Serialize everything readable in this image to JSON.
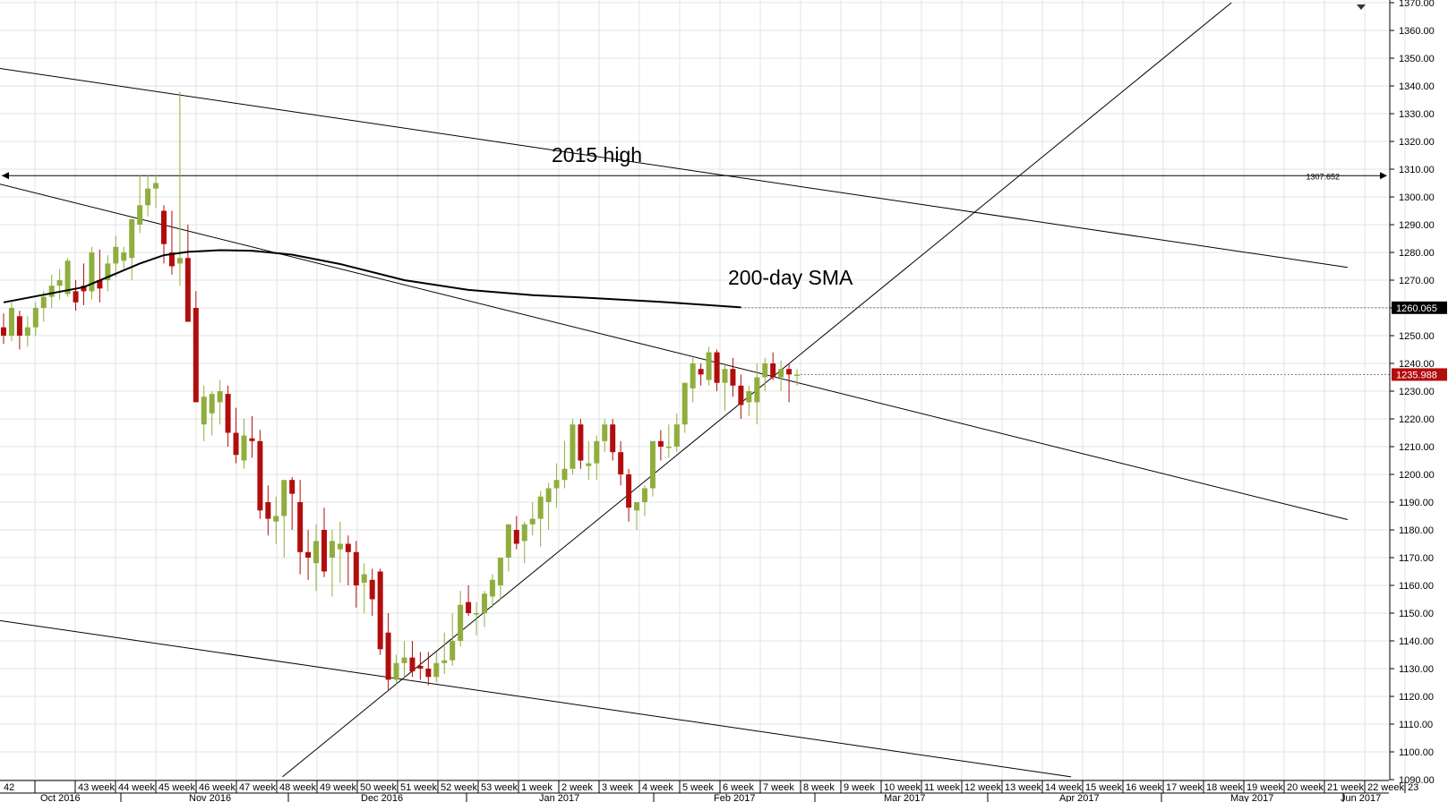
{
  "chart_data": {
    "type": "candlestick",
    "title": "",
    "xlabel": "",
    "ylabel": "",
    "ylim": [
      1090,
      1370
    ],
    "y_ticks": [
      "1370.00",
      "1360.00",
      "1350.00",
      "1340.00",
      "1330.00",
      "1320.00",
      "1310.00",
      "1300.00",
      "1290.00",
      "1280.00",
      "1270.00",
      "1260.00",
      "1250.00",
      "1240.00",
      "1230.00",
      "1220.00",
      "1210.00",
      "1200.00",
      "1190.00",
      "1180.00",
      "1170.00",
      "1160.00",
      "1150.00",
      "1140.00",
      "1130.00",
      "1120.00",
      "1110.00",
      "1100.00",
      "1090.00"
    ],
    "week_labels": [
      "42",
      "43 week",
      "44 week",
      "45 week",
      "46 week",
      "47 week",
      "48 week",
      "49 week",
      "50 week",
      "51 week",
      "52 week",
      "53 week",
      "1 week",
      "2 week",
      "3 week",
      "4 week",
      "5 week",
      "6 week",
      "7 week",
      "8 week",
      "9 week",
      "10 week",
      "11 week",
      "12 week",
      "13 week",
      "14 week",
      "15 week",
      "16 week",
      "17 week",
      "18 week",
      "19 week",
      "20 week",
      "21 week",
      "22 week",
      "23"
    ],
    "month_labels": [
      "Oct 2016",
      "Nov 2016",
      "Dec 2016",
      "Jan 2017",
      "Feb 2017",
      "Mar 2017",
      "Apr 2017",
      "May 2017",
      "Jun 2017"
    ],
    "candles_ohlc": [
      [
        1253,
        1258,
        1247,
        1250
      ],
      [
        1250,
        1262,
        1248,
        1260
      ],
      [
        1257,
        1259,
        1245,
        1250
      ],
      [
        1250,
        1257,
        1246,
        1253
      ],
      [
        1253,
        1262,
        1250,
        1260
      ],
      [
        1260,
        1266,
        1255,
        1264
      ],
      [
        1264,
        1272,
        1260,
        1268
      ],
      [
        1268,
        1274,
        1263,
        1270
      ],
      [
        1265,
        1278,
        1264,
        1277
      ],
      [
        1266,
        1270,
        1259,
        1262
      ],
      [
        1268,
        1276,
        1261,
        1266
      ],
      [
        1266,
        1282,
        1263,
        1280
      ],
      [
        1270,
        1281,
        1262,
        1267
      ],
      [
        1270,
        1279,
        1266,
        1276
      ],
      [
        1276,
        1286,
        1271,
        1282
      ],
      [
        1277,
        1282,
        1274,
        1280
      ],
      [
        1278,
        1292,
        1270,
        1292
      ],
      [
        1290,
        1308,
        1287,
        1297
      ],
      [
        1297,
        1308,
        1293,
        1303
      ],
      [
        1303,
        1308,
        1296,
        1305
      ],
      [
        1295,
        1297,
        1276,
        1283
      ],
      [
        1280,
        1295,
        1272,
        1275
      ],
      [
        1276,
        1338,
        1268,
        1278
      ],
      [
        1278,
        1290,
        1255,
        1255
      ],
      [
        1260,
        1266,
        1226,
        1226
      ],
      [
        1218,
        1232,
        1212,
        1228
      ],
      [
        1222,
        1230,
        1214,
        1229
      ],
      [
        1226,
        1234,
        1218,
        1230
      ],
      [
        1229,
        1232,
        1210,
        1215
      ],
      [
        1215,
        1224,
        1204,
        1207
      ],
      [
        1205,
        1220,
        1202,
        1214
      ],
      [
        1213,
        1221,
        1206,
        1212
      ],
      [
        1212,
        1216,
        1184,
        1187
      ],
      [
        1190,
        1196,
        1178,
        1184
      ],
      [
        1183,
        1192,
        1175,
        1185
      ],
      [
        1185,
        1198,
        1170,
        1198
      ],
      [
        1198,
        1199,
        1180,
        1193
      ],
      [
        1190,
        1198,
        1164,
        1172
      ],
      [
        1172,
        1180,
        1162,
        1170
      ],
      [
        1168,
        1182,
        1158,
        1176
      ],
      [
        1180,
        1188,
        1163,
        1165
      ],
      [
        1170,
        1180,
        1156,
        1176
      ],
      [
        1173,
        1183,
        1161,
        1175
      ],
      [
        1175,
        1178,
        1160,
        1172
      ],
      [
        1172,
        1176,
        1152,
        1160
      ],
      [
        1161,
        1168,
        1150,
        1164
      ],
      [
        1162,
        1166,
        1149,
        1155
      ],
      [
        1165,
        1166,
        1135,
        1137
      ],
      [
        1143,
        1150,
        1122,
        1126
      ],
      [
        1126,
        1135,
        1124,
        1132
      ],
      [
        1132,
        1140,
        1126,
        1134
      ],
      [
        1134,
        1140,
        1127,
        1129
      ],
      [
        1131,
        1136,
        1126,
        1130
      ],
      [
        1130,
        1136,
        1124,
        1127
      ],
      [
        1127,
        1136,
        1125,
        1132
      ],
      [
        1132,
        1143,
        1128,
        1133
      ],
      [
        1133,
        1150,
        1131,
        1140
      ],
      [
        1140,
        1158,
        1138,
        1153
      ],
      [
        1154,
        1160,
        1149,
        1150
      ],
      [
        1150,
        1154,
        1142,
        1150
      ],
      [
        1150,
        1158,
        1145,
        1157
      ],
      [
        1156,
        1164,
        1152,
        1162
      ],
      [
        1160,
        1170,
        1155,
        1170
      ],
      [
        1170,
        1182,
        1165,
        1182
      ],
      [
        1180,
        1185,
        1173,
        1175
      ],
      [
        1176,
        1183,
        1168,
        1182
      ],
      [
        1182,
        1190,
        1178,
        1184
      ],
      [
        1184,
        1194,
        1174,
        1192
      ],
      [
        1190,
        1197,
        1180,
        1195
      ],
      [
        1195,
        1204,
        1188,
        1198
      ],
      [
        1198,
        1212,
        1195,
        1202
      ],
      [
        1202,
        1220,
        1200,
        1218
      ],
      [
        1218,
        1220,
        1202,
        1205
      ],
      [
        1203,
        1212,
        1198,
        1204
      ],
      [
        1204,
        1214,
        1198,
        1212
      ],
      [
        1212,
        1220,
        1208,
        1218
      ],
      [
        1218,
        1220,
        1205,
        1208
      ],
      [
        1208,
        1212,
        1196,
        1200
      ],
      [
        1200,
        1202,
        1183,
        1188
      ],
      [
        1187,
        1190,
        1180,
        1190
      ],
      [
        1190,
        1196,
        1185,
        1195
      ],
      [
        1195,
        1212,
        1192,
        1212
      ],
      [
        1212,
        1216,
        1205,
        1210
      ],
      [
        1210,
        1218,
        1206,
        1210
      ],
      [
        1210,
        1222,
        1208,
        1218
      ],
      [
        1218,
        1233,
        1215,
        1233
      ],
      [
        1231,
        1242,
        1226,
        1240
      ],
      [
        1238,
        1240,
        1232,
        1236
      ],
      [
        1234,
        1246,
        1232,
        1244
      ],
      [
        1244,
        1245,
        1230,
        1233
      ],
      [
        1233,
        1240,
        1223,
        1238
      ],
      [
        1238,
        1242,
        1228,
        1232
      ],
      [
        1232,
        1236,
        1220,
        1225
      ],
      [
        1226,
        1232,
        1221,
        1230
      ],
      [
        1226,
        1240,
        1218,
        1235
      ],
      [
        1235,
        1242,
        1230,
        1240
      ],
      [
        1240,
        1244,
        1234,
        1235
      ],
      [
        1235,
        1241,
        1230,
        1238
      ],
      [
        1238,
        1240,
        1226,
        1236
      ],
      [
        1236,
        1238,
        1232,
        1236
      ]
    ],
    "sma_200_last": "1260.065",
    "last_price": "1235.988",
    "horizontal_level": "1307.652",
    "annotations": [
      "2015 high",
      "200-day SMA"
    ],
    "grid": true,
    "colors": {
      "up": "#8fae3e",
      "down": "#b20d0d",
      "sma": "#000000",
      "trendline": "#000000",
      "price_tag": "#b20d0d",
      "sma_tag": "#000000",
      "grid": "#e3e3e3"
    }
  }
}
